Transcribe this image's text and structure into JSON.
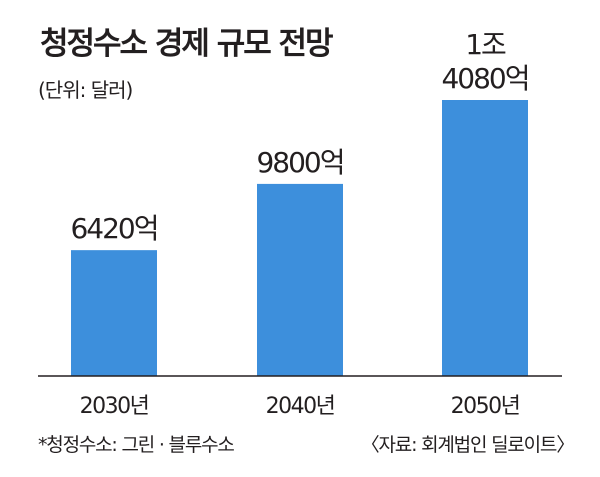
{
  "chart_data": {
    "type": "bar",
    "title": "청정수소 경제 규모 전망",
    "unit_note": "(단위: 달러)",
    "categories": [
      "2030년",
      "2040년",
      "2050년"
    ],
    "values": [
      642000000000,
      980000000000,
      1408000000000
    ],
    "value_labels": [
      [
        "6420억"
      ],
      [
        "9800억"
      ],
      [
        "1조",
        "4080억"
      ]
    ],
    "ylim": [
      0,
      1408000000000
    ],
    "bar_color": "#3d8fdc",
    "axis_color": "#231f20",
    "grid": false,
    "legend": "none"
  },
  "footnote": "*청정수소: 그린 · 블루수소",
  "source": "〈자료: 회계법인 딜로이트〉"
}
